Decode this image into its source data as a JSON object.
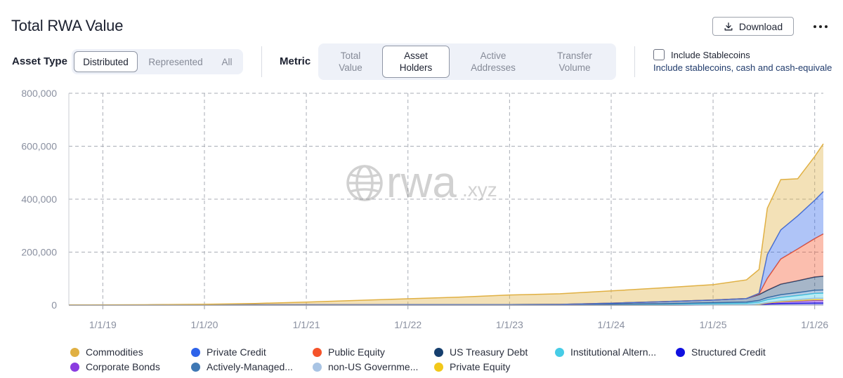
{
  "header": {
    "title": "Total RWA Value",
    "download_label": "Download"
  },
  "filters": {
    "asset_type_label": "Asset Type",
    "asset_type_options": [
      "Distributed",
      "Represented",
      "All"
    ],
    "asset_type_selected": "Distributed",
    "metric_label": "Metric",
    "metric_options": [
      {
        "line1": "Total",
        "line2": "Value"
      },
      {
        "line1": "Asset",
        "line2": "Holders"
      },
      {
        "line1": "Active",
        "line2": "Addresses"
      },
      {
        "line1": "Transfer",
        "line2": "Volume"
      }
    ],
    "metric_selected": "Asset Holders",
    "stablecoins_label": "Include Stablecoins",
    "stablecoins_sub": "Include stablecoins, cash and cash-equivale",
    "stablecoins_checked": false
  },
  "watermark": {
    "main": "rwa",
    "suffix": ".xyz"
  },
  "chart_data": {
    "type": "area",
    "stacked": true,
    "title": "",
    "xlabel": "",
    "ylabel": "",
    "ylim": [
      0,
      800000
    ],
    "y_ticks": [
      0,
      200000,
      400000,
      600000,
      800000
    ],
    "y_tick_labels": [
      "0",
      "200,000",
      "400,000",
      "600,000",
      "800,000"
    ],
    "x_ticks": [
      "2019-01-01",
      "2020-01-01",
      "2021-01-01",
      "2022-01-01",
      "2023-01-01",
      "2024-01-01",
      "2025-01-01",
      "2026-01-01"
    ],
    "x_tick_labels": [
      "1/1/19",
      "1/1/20",
      "1/1/21",
      "1/1/22",
      "1/1/23",
      "1/1/24",
      "1/1/25",
      "1/1/26"
    ],
    "x_range": [
      "2018-09-01",
      "2026-02-01"
    ],
    "grid": true,
    "legend_position": "bottom",
    "x": [
      "2018-09-01",
      "2019-06-01",
      "2020-01-01",
      "2020-07-01",
      "2021-01-01",
      "2021-07-01",
      "2022-01-01",
      "2022-07-01",
      "2023-01-01",
      "2023-07-01",
      "2024-01-01",
      "2024-07-01",
      "2025-01-01",
      "2025-05-01",
      "2025-06-15",
      "2025-07-15",
      "2025-09-01",
      "2025-11-01",
      "2026-01-01",
      "2026-02-01"
    ],
    "series": [
      {
        "name": "Structured Credit",
        "color": "#1010e0",
        "values": [
          0,
          0,
          0,
          0,
          0,
          0,
          0,
          0,
          0,
          0,
          0,
          0,
          500,
          500,
          1500,
          4000,
          6000,
          7000,
          8000,
          8000
        ]
      },
      {
        "name": "Corporate Bonds",
        "color": "#8a3ce0",
        "values": [
          0,
          0,
          0,
          0,
          0,
          0,
          0,
          0,
          0,
          0,
          0,
          0,
          500,
          500,
          1500,
          3000,
          5000,
          7000,
          9000,
          9000
        ]
      },
      {
        "name": "Private Equity",
        "color": "#f2c81a",
        "values": [
          0,
          0,
          0,
          0,
          0,
          0,
          0,
          0,
          0,
          0,
          0,
          0,
          0,
          0,
          500,
          1000,
          2000,
          3000,
          4000,
          4000
        ]
      },
      {
        "name": "non-US Government Debt",
        "color": "#a9c4e4",
        "values": [
          0,
          0,
          0,
          0,
          0,
          0,
          0,
          0,
          0,
          0,
          0,
          0,
          500,
          500,
          1000,
          2000,
          3000,
          4000,
          5000,
          5000
        ]
      },
      {
        "name": "Institutional Alternative Funds",
        "color": "#46cce6",
        "values": [
          500,
          800,
          1000,
          1200,
          1500,
          1600,
          1800,
          2000,
          2200,
          2600,
          3000,
          3500,
          4500,
          5500,
          7000,
          10000,
          13000,
          15000,
          18000,
          19000
        ]
      },
      {
        "name": "Actively-Managed Strategies",
        "color": "#3f78b4",
        "values": [
          0,
          0,
          0,
          0,
          0,
          0,
          0,
          0,
          0,
          0,
          500,
          1500,
          3000,
          4000,
          6000,
          8000,
          10000,
          11000,
          12000,
          12000
        ]
      },
      {
        "name": "US Treasury Debt",
        "color": "#163f6e",
        "values": [
          0,
          0,
          0,
          0,
          0,
          0,
          0,
          0,
          0,
          0,
          4000,
          8000,
          10000,
          14000,
          22000,
          28000,
          40000,
          45000,
          50000,
          52000
        ]
      },
      {
        "name": "Public Equity",
        "color": "#f5532a",
        "values": [
          0,
          0,
          0,
          0,
          0,
          0,
          0,
          0,
          0,
          0,
          0,
          0,
          0,
          0,
          2000,
          45000,
          95000,
          120000,
          145000,
          160000
        ]
      },
      {
        "name": "Private Credit",
        "color": "#2e63ea",
        "values": [
          0,
          0,
          0,
          0,
          0,
          0,
          0,
          0,
          0,
          0,
          0,
          0,
          0,
          0,
          3000,
          90000,
          110000,
          125000,
          145000,
          160000
        ]
      },
      {
        "name": "Commodities",
        "color": "#e0b043",
        "values": [
          0,
          500,
          2000,
          5000,
          10000,
          16000,
          22000,
          28000,
          36000,
          40000,
          46000,
          52000,
          58000,
          70000,
          90000,
          175000,
          190000,
          140000,
          165000,
          180000
        ]
      }
    ],
    "legend": [
      "Commodities",
      "Private Credit",
      "Public Equity",
      "US Treasury Debt",
      "Institutional Altern...",
      "Structured Credit",
      "Corporate Bonds",
      "Actively-Managed...",
      "non-US Governme...",
      "Private Equity"
    ],
    "legend_colors": [
      "#e0b043",
      "#2e63ea",
      "#f5532a",
      "#163f6e",
      "#46cce6",
      "#1010e0",
      "#8a3ce0",
      "#3f78b4",
      "#a9c4e4",
      "#f2c81a"
    ]
  }
}
